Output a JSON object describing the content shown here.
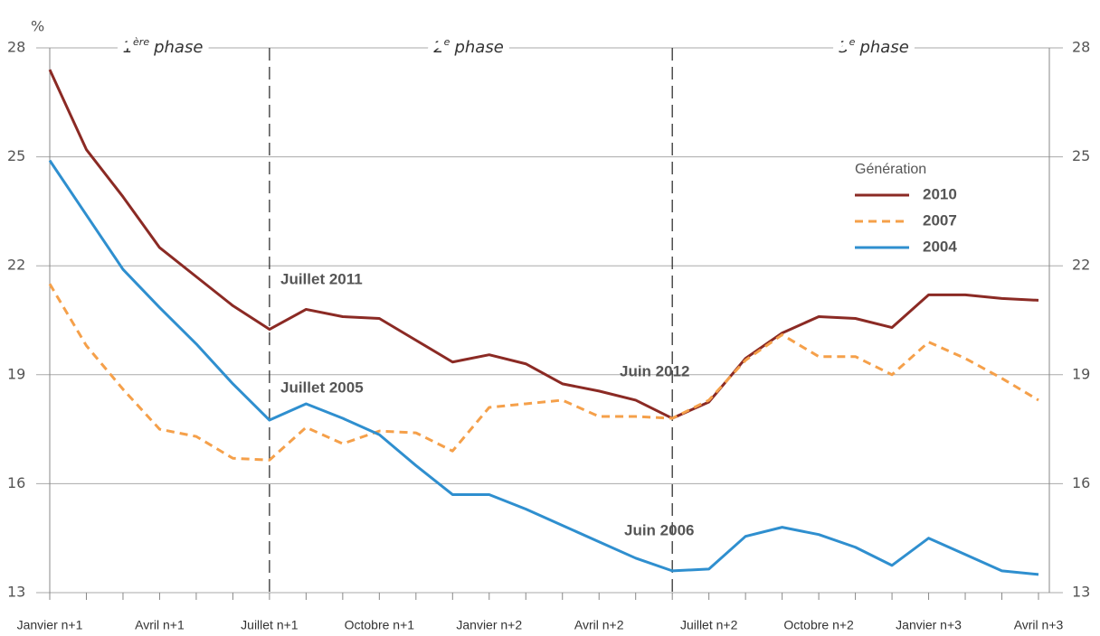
{
  "chart_data": {
    "type": "line",
    "y_unit": "%",
    "categories": [
      "Janvier n+1",
      null,
      null,
      "Avril n+1",
      null,
      null,
      "Juillet n+1",
      null,
      null,
      "Octobre n+1",
      null,
      null,
      "Janvier n+2",
      null,
      null,
      "Avril n+2",
      null,
      null,
      "Juillet n+2",
      null,
      null,
      "Octobre n+2",
      null,
      null,
      "Janvier n+3",
      null,
      null,
      "Avril n+3"
    ],
    "series": [
      {
        "name": "2010",
        "color": "#8b2a24",
        "dashed": false,
        "values": [
          27.4,
          25.2,
          23.9,
          22.5,
          21.7,
          20.9,
          20.25,
          20.8,
          20.6,
          20.55,
          19.95,
          19.35,
          19.55,
          19.3,
          18.75,
          18.55,
          18.3,
          17.8,
          18.25,
          19.45,
          20.15,
          20.6,
          20.55,
          20.3,
          21.2,
          21.2,
          21.1,
          21.05
        ]
      },
      {
        "name": "2007",
        "color": "#f5a04a",
        "dashed": true,
        "values": [
          21.5,
          19.8,
          18.6,
          17.5,
          17.3,
          16.7,
          16.65,
          17.55,
          17.1,
          17.45,
          17.4,
          16.9,
          18.1,
          18.2,
          18.3,
          17.85,
          17.85,
          17.8,
          18.3,
          19.4,
          20.1,
          19.5,
          19.5,
          19.0,
          19.9,
          19.45,
          18.9,
          18.3
        ]
      },
      {
        "name": "2004",
        "color": "#2f8fcf",
        "dashed": false,
        "values": [
          24.9,
          23.4,
          21.9,
          20.85,
          19.85,
          18.75,
          17.75,
          18.2,
          17.8,
          17.35,
          16.5,
          15.7,
          15.7,
          15.3,
          14.85,
          14.4,
          13.95,
          13.6,
          13.65,
          14.55,
          14.8,
          14.6,
          14.25,
          13.75,
          14.5,
          14.05,
          13.6,
          13.5
        ]
      }
    ],
    "ylim": [
      13,
      28
    ],
    "yticks": [
      13,
      16,
      19,
      22,
      25,
      28
    ],
    "grid": true,
    "legend_title": "Génération",
    "legend": "right",
    "phases": [
      {
        "number": "1",
        "suffix": "ère",
        "label": "phase"
      },
      {
        "number": "2",
        "suffix": "e",
        "label": "phase"
      },
      {
        "number": "3",
        "suffix": "e",
        "label": "phase"
      }
    ],
    "annotations": [
      {
        "text": "Juillet 2011",
        "color": "#8b2a24"
      },
      {
        "text": "Juillet 2005",
        "color": "#2f8fcf"
      },
      {
        "text": "Juin 2012",
        "color": "#8b2a24"
      },
      {
        "text": "Juin 2006",
        "color": "#2f8fcf"
      }
    ]
  }
}
